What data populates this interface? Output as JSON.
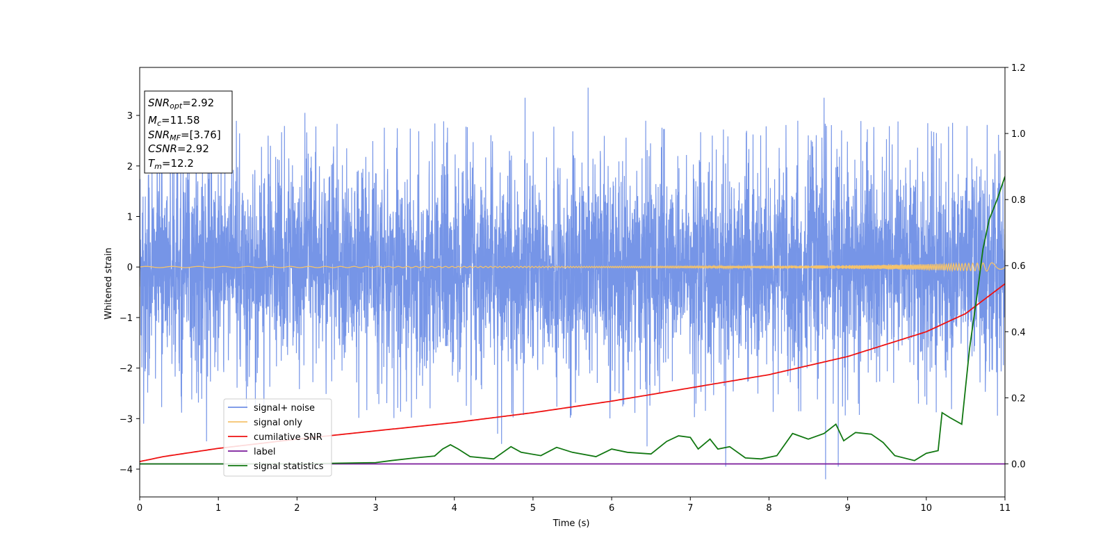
{
  "chart_data": {
    "type": "line",
    "xlabel": "Time (s)",
    "ylabel": "Whitened strain",
    "xlim": [
      0,
      11
    ],
    "ylim_left": [
      -4.55,
      3.95
    ],
    "ylim_right": [
      -0.1,
      1.2
    ],
    "x_ticks": [
      0,
      1,
      2,
      3,
      4,
      5,
      6,
      7,
      8,
      9,
      10,
      11
    ],
    "y_ticks_left": [
      -4,
      -3,
      -2,
      -1,
      0,
      1,
      2,
      3
    ],
    "y_ticks_right": [
      0.0,
      0.2,
      0.4,
      0.6,
      0.8,
      1.0,
      1.2
    ],
    "grid": false,
    "legend_position": "lower-left",
    "series": [
      {
        "name": "signal+ noise",
        "axis": "left",
        "color": "#6f8fe6",
        "kind": "noise",
        "typical_range": [
          -1.8,
          2.2
        ],
        "extremes": [
          [
            0.05,
            -3.1
          ],
          [
            0.85,
            -3.45
          ],
          [
            4.55,
            -3.3
          ],
          [
            4.6,
            -3.5
          ],
          [
            5.7,
            3.55
          ],
          [
            6.45,
            -3.55
          ],
          [
            7.45,
            -3.95
          ],
          [
            8.7,
            3.35
          ],
          [
            8.72,
            -4.2
          ],
          [
            8.88,
            -3.95
          ],
          [
            4.9,
            3.35
          ],
          [
            2.1,
            3.05
          ]
        ]
      },
      {
        "name": "signal only",
        "axis": "left",
        "color": "#f5c36b",
        "kind": "chirp",
        "points": [
          [
            0,
            0.0
          ],
          [
            10.2,
            0.0
          ],
          [
            11,
            0.0
          ]
        ],
        "amplitude_end": 0.08
      },
      {
        "name": "cumilative SNR",
        "axis": "right",
        "color": "#ee1111",
        "points": [
          [
            0,
            0.007
          ],
          [
            0.3,
            0.022
          ],
          [
            1,
            0.047
          ],
          [
            2,
            0.075
          ],
          [
            3,
            0.1
          ],
          [
            4,
            0.125
          ],
          [
            5,
            0.155
          ],
          [
            6,
            0.19
          ],
          [
            7,
            0.23
          ],
          [
            8,
            0.27
          ],
          [
            9,
            0.325
          ],
          [
            10,
            0.4
          ],
          [
            10.5,
            0.455
          ],
          [
            11,
            0.545
          ]
        ]
      },
      {
        "name": "label",
        "axis": "right",
        "color": "#7a1a9a",
        "points": [
          [
            0,
            0.0
          ],
          [
            11,
            0.0
          ]
        ]
      },
      {
        "name": "signal statistics",
        "axis": "right",
        "color": "#117711",
        "points": [
          [
            0,
            0.0
          ],
          [
            1,
            0.0
          ],
          [
            2,
            0.0
          ],
          [
            2.5,
            0.002
          ],
          [
            3,
            0.004
          ],
          [
            3.2,
            0.01
          ],
          [
            3.5,
            0.018
          ],
          [
            3.75,
            0.024
          ],
          [
            3.85,
            0.045
          ],
          [
            3.95,
            0.058
          ],
          [
            4.05,
            0.045
          ],
          [
            4.2,
            0.022
          ],
          [
            4.5,
            0.015
          ],
          [
            4.72,
            0.052
          ],
          [
            4.85,
            0.035
          ],
          [
            5.1,
            0.025
          ],
          [
            5.3,
            0.05
          ],
          [
            5.5,
            0.035
          ],
          [
            5.8,
            0.022
          ],
          [
            6.0,
            0.045
          ],
          [
            6.2,
            0.035
          ],
          [
            6.5,
            0.03
          ],
          [
            6.7,
            0.068
          ],
          [
            6.85,
            0.085
          ],
          [
            7.0,
            0.08
          ],
          [
            7.1,
            0.045
          ],
          [
            7.25,
            0.075
          ],
          [
            7.35,
            0.045
          ],
          [
            7.5,
            0.052
          ],
          [
            7.7,
            0.018
          ],
          [
            7.9,
            0.015
          ],
          [
            8.1,
            0.025
          ],
          [
            8.3,
            0.092
          ],
          [
            8.5,
            0.075
          ],
          [
            8.7,
            0.092
          ],
          [
            8.85,
            0.12
          ],
          [
            8.95,
            0.07
          ],
          [
            9.1,
            0.095
          ],
          [
            9.3,
            0.09
          ],
          [
            9.45,
            0.065
          ],
          [
            9.6,
            0.025
          ],
          [
            9.85,
            0.01
          ],
          [
            10.0,
            0.032
          ],
          [
            10.15,
            0.04
          ],
          [
            10.2,
            0.155
          ],
          [
            10.3,
            0.14
          ],
          [
            10.45,
            0.12
          ],
          [
            10.55,
            0.35
          ],
          [
            10.65,
            0.52
          ],
          [
            10.72,
            0.65
          ],
          [
            10.8,
            0.74
          ],
          [
            10.9,
            0.8
          ],
          [
            11,
            0.87
          ]
        ]
      }
    ],
    "annotation_lines": [
      "SNR_opt=2.92",
      "M_c=11.58",
      "SNR_MF=[3.76]",
      "CSNR=2.92",
      "T_m=12.2"
    ]
  },
  "info_box": {
    "snr_opt_label": "SNR",
    "snr_opt_sub": "opt",
    "snr_opt_value": "=2.92",
    "mc_label": "M",
    "mc_sub": "c",
    "mc_value": "=11.58",
    "snr_mf_label": "SNR",
    "snr_mf_sub": "MF",
    "snr_mf_value": "=[3.76]",
    "csnr_label": "CSNR",
    "csnr_value": "=2.92",
    "tm_label": "T",
    "tm_sub": "m",
    "tm_value": "=12.2"
  }
}
